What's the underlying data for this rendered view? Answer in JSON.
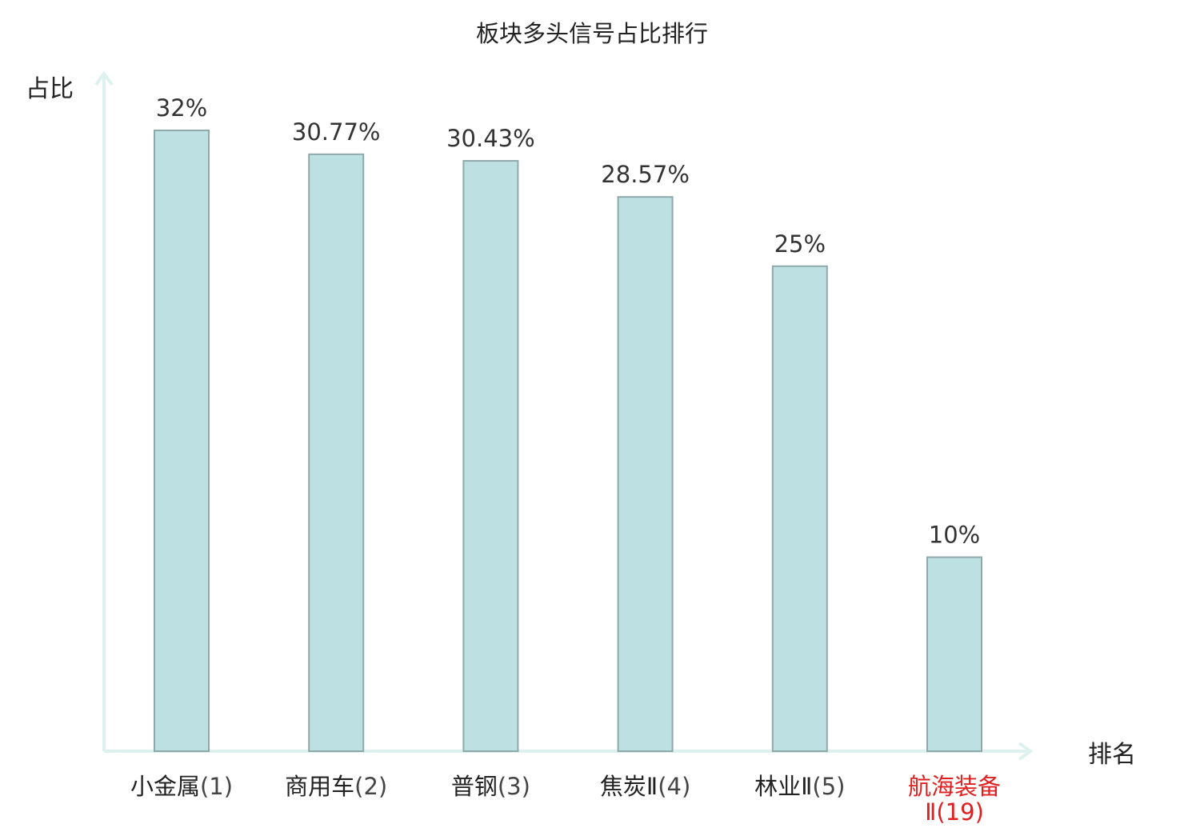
{
  "chart_data": {
    "type": "bar",
    "title": "板块多头信号占比排行",
    "ylabel": "占比",
    "xlabel": "排名",
    "ylim": [
      0,
      35
    ],
    "grid": false,
    "categories": [
      {
        "name": "小金属",
        "rank": "(1)",
        "highlight": false
      },
      {
        "name": "商用车",
        "rank": "(2)",
        "highlight": false
      },
      {
        "name": "普钢",
        "rank": "(3)",
        "highlight": false
      },
      {
        "name": "焦炭Ⅱ",
        "rank": "(4)",
        "highlight": false
      },
      {
        "name": "林业Ⅱ",
        "rank": "(5)",
        "highlight": false
      },
      {
        "name": "航海装备",
        "rank": "Ⅱ(19)",
        "highlight": true
      }
    ],
    "values": [
      32,
      30.77,
      30.43,
      28.57,
      25,
      10
    ],
    "value_labels": [
      "32%",
      "30.77%",
      "30.43%",
      "28.57%",
      "25%",
      "10%"
    ]
  },
  "colors": {
    "bar_fill": "#bde0e3",
    "bar_stroke": "#8fa9ab",
    "axis": "#ddf1ee",
    "text": "#222222",
    "highlight": "#e02020"
  }
}
